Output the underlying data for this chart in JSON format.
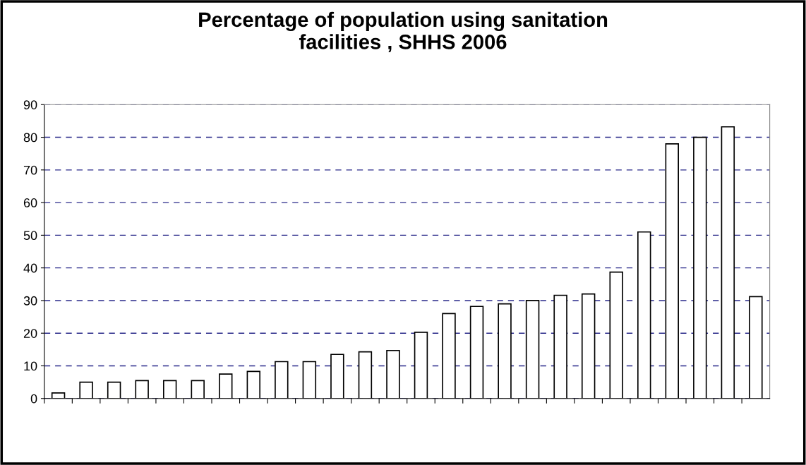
{
  "chart_data": {
    "type": "bar",
    "title": "Percentage of population using sanitation\nfacilities , SHHS 2006",
    "categories": [
      null,
      null,
      null,
      null,
      null,
      null,
      null,
      null,
      null,
      null,
      null,
      null,
      null,
      null,
      null,
      null,
      null,
      null,
      null,
      null,
      null,
      null,
      null,
      null,
      null,
      null
    ],
    "values": [
      1.7,
      5,
      5,
      5.5,
      5.5,
      5.5,
      7.5,
      8.3,
      11.3,
      11.3,
      13.5,
      14.3,
      14.7,
      20.3,
      26,
      28.2,
      29,
      30,
      31.6,
      32,
      38.7,
      51,
      78,
      80,
      83.2,
      31.2
    ],
    "color": "#ffffff",
    "ylim": [
      0,
      90
    ],
    "yticks": [
      0,
      10,
      20,
      30,
      40,
      50,
      60,
      70,
      80,
      90
    ],
    "grid": "y",
    "tick_labels": "y"
  }
}
